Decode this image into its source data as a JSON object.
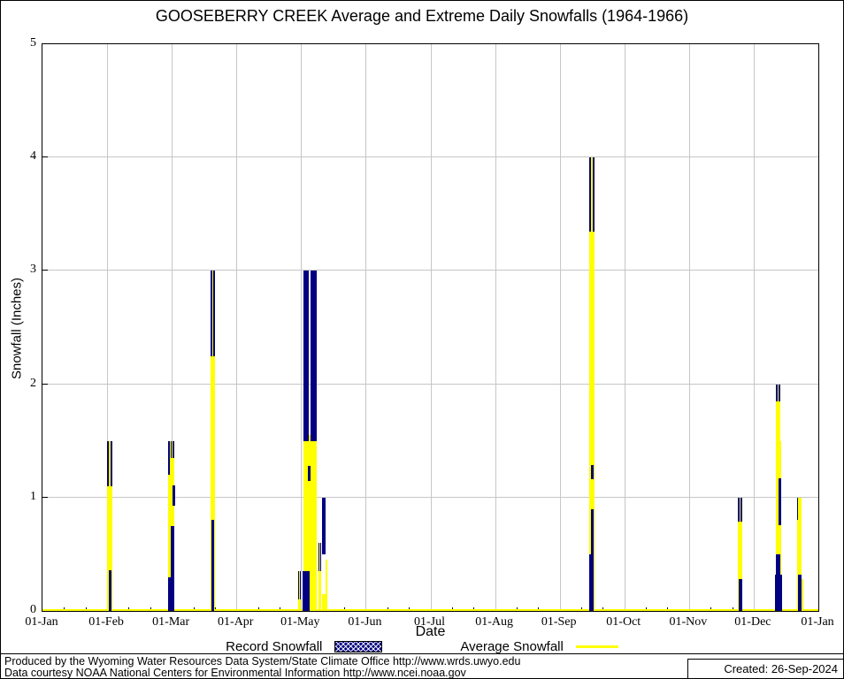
{
  "title": "GOOSEBERRY CREEK Average and Extreme Daily Snowfalls (1964-1966)",
  "y_axis": {
    "label": "Snowfall (Inches)",
    "min": 0,
    "max": 5,
    "ticks": [
      "0",
      "1",
      "2",
      "3",
      "4",
      "5"
    ]
  },
  "x_axis": {
    "label": "Date",
    "ticks": [
      "01-Jan",
      "01-Feb",
      "01-Mar",
      "01-Apr",
      "01-May",
      "01-Jun",
      "01-Jul",
      "01-Aug",
      "01-Sep",
      "01-Oct",
      "01-Nov",
      "01-Dec",
      "01-Jan"
    ]
  },
  "legend": [
    {
      "label": "Record Snowfall",
      "swatch": "hatched-navy-box"
    },
    {
      "label": "Average Snowfall",
      "swatch": "yellow-line"
    }
  ],
  "footer": {
    "line1": "Produced by the Wyoming Water Resources Data System/State Climate Office http://www.wrds.uwyo.edu",
    "line2": "Data courtesy NOAA National Centers for Environmental Information http://www.ncei.noaa.gov",
    "created": "Created: 26-Sep-2024"
  },
  "colors": {
    "record": "#000080",
    "average": "#ffff00",
    "grid": "#c6c6c6",
    "axis": "#000000"
  },
  "chart_data": {
    "type": "bar",
    "title": "GOOSEBERRY CREEK Average and Extreme Daily Snowfalls (1964-1966)",
    "xlabel": "Date",
    "ylabel": "Snowfall (Inches)",
    "ylim": [
      0,
      5
    ],
    "grid": true,
    "legend_position": "below",
    "series_names": [
      "Record Snowfall",
      "Average Snowfall"
    ],
    "minor_ticks_per_month": 3,
    "events": [
      {
        "date": "02-Feb",
        "pos": 0.0865,
        "type": "spike",
        "record": 1.5,
        "average": 1.1,
        "w": 6
      },
      {
        "date": "03-Feb",
        "pos": 0.0876,
        "type": "overlay",
        "record": 0.36,
        "w": 3
      },
      {
        "date": "01-Mar",
        "pos": 0.1644,
        "type": "spike",
        "record": 1.5,
        "average": 1.2,
        "w": 5
      },
      {
        "date": "02-Mar",
        "pos": 0.1672,
        "type": "spike",
        "record": 1.5,
        "average": 1.35,
        "w": 4
      },
      {
        "date": "03-Mar",
        "pos": 0.1689,
        "type": "navyseg",
        "v0": 0.93,
        "v1": 1.11,
        "w": 3
      },
      {
        "date": "02-Mar",
        "pos": 0.1672,
        "type": "overlay",
        "record": 0.75,
        "w": 4
      },
      {
        "date": "01-Mar",
        "pos": 0.1655,
        "type": "overlay",
        "record": 0.3,
        "w": 7
      },
      {
        "date": "21-Mar",
        "pos": 0.219,
        "type": "spike",
        "record": 3.0,
        "average": 2.25,
        "w": 5
      },
      {
        "date": "21-Mar",
        "pos": 0.219,
        "type": "overlay",
        "record": 0.8,
        "w": 3
      },
      {
        "date": "30-Apr",
        "pos": 0.3311,
        "type": "spike",
        "record": 0.35,
        "average": 0.1,
        "w": 3
      },
      {
        "date": "04-May",
        "pos": 0.3396,
        "type": "solid",
        "record": 3.0,
        "average": 1.5,
        "w": 6
      },
      {
        "date": "06-May",
        "pos": 0.3447,
        "type": "yline",
        "average": 1.55,
        "w": 2
      },
      {
        "date": "07-May",
        "pos": 0.3493,
        "type": "solid",
        "record": 3.0,
        "average": 1.5,
        "w": 7
      },
      {
        "date": "06-May",
        "pos": 0.3436,
        "type": "navyseg",
        "v0": 1.15,
        "v1": 1.28,
        "w": 3
      },
      {
        "date": "05-May",
        "pos": 0.3402,
        "type": "overlay",
        "record": 0.35,
        "w": 8
      },
      {
        "date": "10-May",
        "pos": 0.3572,
        "type": "spike",
        "record": 0.6,
        "average": 0.35,
        "w": 3
      },
      {
        "date": "12-May",
        "pos": 0.3629,
        "type": "navyseg",
        "v0": 0.5,
        "v1": 1.0,
        "w": 4
      },
      {
        "date": "12-May",
        "pos": 0.3629,
        "type": "yline",
        "average": 0.15,
        "w": 4
      },
      {
        "date": "13-May",
        "pos": 0.3657,
        "type": "yline",
        "average": 0.45,
        "w": 2
      },
      {
        "date": "15-Sep",
        "pos": 0.7076,
        "type": "spike",
        "record": 4.0,
        "average": 3.35,
        "w": 6
      },
      {
        "date": "16-Sep",
        "pos": 0.7088,
        "type": "navyseg",
        "v0": 1.16,
        "v1": 1.29,
        "w": 3
      },
      {
        "date": "16-Sep",
        "pos": 0.7088,
        "type": "overlay",
        "record": 0.9,
        "w": 3
      },
      {
        "date": "15-Sep",
        "pos": 0.7076,
        "type": "overlay",
        "record": 0.5,
        "w": 5
      },
      {
        "date": "25-Nov",
        "pos": 0.8988,
        "type": "spike",
        "record": 1.0,
        "average": 0.79,
        "w": 5
      },
      {
        "date": "25-Nov",
        "pos": 0.8993,
        "type": "overlay",
        "record": 0.28,
        "w": 4
      },
      {
        "date": "12-Dec",
        "pos": 0.9477,
        "type": "spike",
        "record": 2.0,
        "average": 1.85,
        "w": 5
      },
      {
        "date": "13-Dec",
        "pos": 0.9505,
        "type": "yline",
        "average": 1.5,
        "w": 3
      },
      {
        "date": "13-Dec",
        "pos": 0.9505,
        "type": "navyseg",
        "v0": 0.76,
        "v1": 1.17,
        "w": 3
      },
      {
        "date": "12-Dec",
        "pos": 0.9482,
        "type": "overlay",
        "record": 0.5,
        "w": 5
      },
      {
        "date": "12-Dec",
        "pos": 0.9488,
        "type": "overlay",
        "record": 0.32,
        "w": 8
      },
      {
        "date": "21-Dec",
        "pos": 0.9738,
        "type": "spike",
        "record": 1.0,
        "average": 0.8,
        "w": 3
      },
      {
        "date": "22-Dec",
        "pos": 0.9761,
        "type": "yline",
        "average": 1.0,
        "w": 4
      },
      {
        "date": "22-Dec",
        "pos": 0.9761,
        "type": "overlay",
        "record": 0.32,
        "w": 4
      },
      {
        "date": "23-Dec",
        "pos": 0.9778,
        "type": "yline",
        "average": 0.28,
        "w": 4
      }
    ]
  }
}
